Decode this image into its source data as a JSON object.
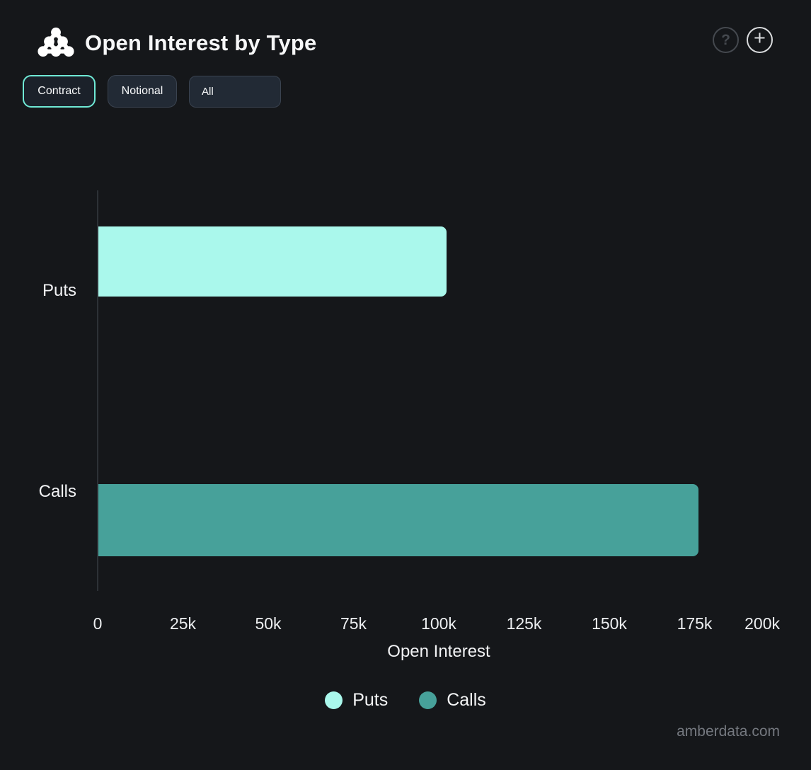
{
  "header": {
    "title": "Open Interest by Type",
    "icons": {
      "help_glyph": "?",
      "plus_glyph": "+"
    }
  },
  "toolbar": {
    "buttons": [
      {
        "label": "Contract",
        "active": true
      },
      {
        "label": "Notional",
        "active": false
      }
    ],
    "dropdown": {
      "value": "All"
    }
  },
  "chart_data": {
    "type": "bar",
    "orientation": "horizontal",
    "title": "Open Interest by Type",
    "categories": [
      "Puts",
      "Calls"
    ],
    "series": [
      {
        "name": "Puts",
        "value": 102000,
        "color": "#aaf8ec"
      },
      {
        "name": "Calls",
        "value": 176000,
        "color": "#47a19a"
      }
    ],
    "xlabel": "Open Interest",
    "xlim": [
      0,
      200000
    ],
    "xticks": [
      "0",
      "25k",
      "50k",
      "75k",
      "100k",
      "125k",
      "150k",
      "175k",
      "200k"
    ],
    "legend": [
      "Puts",
      "Calls"
    ],
    "legend_position": "bottom",
    "grid": false
  },
  "footer": {
    "watermark": "amberdata.com"
  }
}
